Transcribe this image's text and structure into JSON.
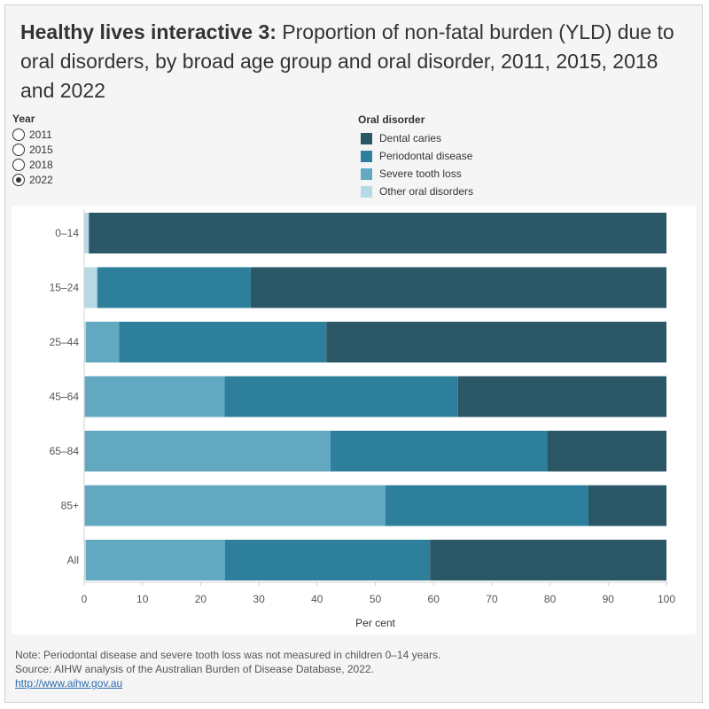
{
  "title": {
    "lead": "Healthy lives interactive 3:",
    "rest": " Proportion of non-fatal burden (YLD) due to oral disorders, by broad age group and oral disorder, 2011, 2015, 2018 and 2022"
  },
  "year_filter": {
    "label": "Year",
    "options": [
      "2011",
      "2015",
      "2018",
      "2022"
    ],
    "selected": "2022"
  },
  "legend": {
    "title": "Oral disorder",
    "items": [
      {
        "label": "Dental caries",
        "color": "#2b5767"
      },
      {
        "label": "Periodontal disease",
        "color": "#2e7f9b"
      },
      {
        "label": "Severe tooth loss",
        "color": "#62a8c0"
      },
      {
        "label": "Other oral disorders",
        "color": "#b7d9e4"
      }
    ]
  },
  "chart_data": {
    "type": "bar",
    "orientation": "horizontal",
    "stacked": true,
    "categories": [
      "0–14",
      "15–24",
      "25–44",
      "45–64",
      "65–84",
      "85+",
      "All"
    ],
    "series": [
      {
        "name": "Other oral disorders",
        "color": "#b7d9e4",
        "values": [
          0.8,
          2.2,
          0.3,
          0.1,
          0.1,
          0.1,
          0.3
        ]
      },
      {
        "name": "Severe tooth loss",
        "color": "#62a8c0",
        "values": [
          0,
          0.1,
          5.7,
          24.0,
          42.2,
          51.6,
          23.9
        ]
      },
      {
        "name": "Periodontal disease",
        "color": "#2e7f9b",
        "values": [
          0,
          26.3,
          35.6,
          40.1,
          37.2,
          34.9,
          35.2
        ]
      },
      {
        "name": "Dental caries",
        "color": "#2b5767",
        "values": [
          99.2,
          71.4,
          58.4,
          35.8,
          20.5,
          13.4,
          40.6
        ]
      }
    ],
    "xlabel": "Per cent",
    "xlim": [
      0,
      100
    ],
    "xticks": [
      0,
      10,
      20,
      30,
      40,
      50,
      60,
      70,
      80,
      90,
      100
    ],
    "grid": false
  },
  "footer": {
    "note": "Note: Periodontal disease and severe tooth loss was not measured in children 0–14 years.",
    "source": "Source: AIHW analysis of the Australian Burden of Disease Database, 2022.",
    "link": "http://www.aihw.gov.au"
  }
}
